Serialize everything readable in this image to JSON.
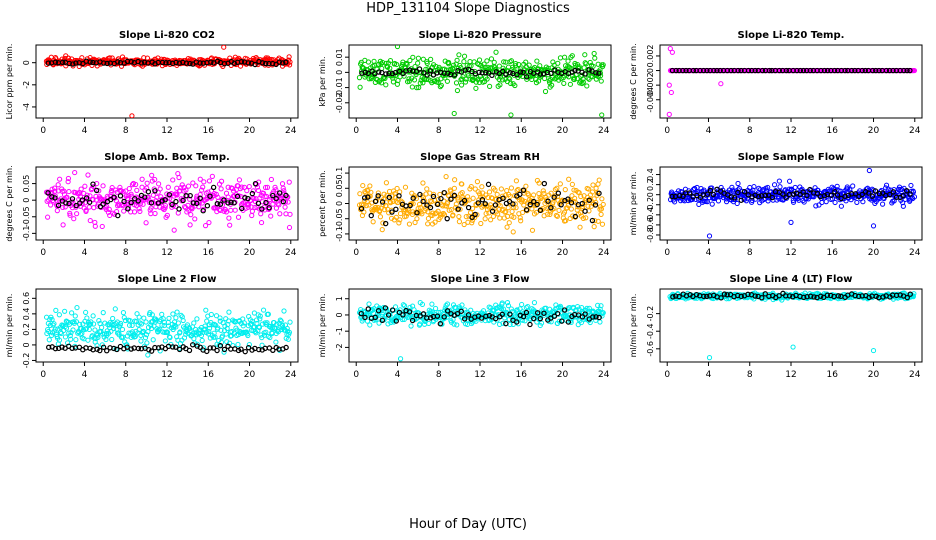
{
  "title": "HDP_131104  Slope Diagnostics",
  "xlabel": "Hour of Day (UTC)",
  "chart_data": [
    {
      "type": "scatter",
      "title": "Slope Li-820 CO2",
      "ylabel": "Licor ppm per min.",
      "color": "#ff0000",
      "ylim": [
        -5,
        1.6
      ],
      "yticks": [
        -4,
        -2,
        0
      ],
      "xlim": [
        0,
        24
      ],
      "xticks": [
        0,
        4,
        8,
        12,
        16,
        20,
        24
      ],
      "x": "0-24 h",
      "center": 0.1,
      "spread": 0.35,
      "black_center": 0,
      "black_spread": 0.15,
      "outliers": [
        {
          "x": 8.6,
          "y": -4.8
        },
        {
          "x": 17.5,
          "y": 1.4
        }
      ]
    },
    {
      "type": "scatter",
      "title": "Slope Li-820 Pressure",
      "ylabel": "kPa per min.",
      "color": "#00cc00",
      "ylim": [
        -0.03,
        0.018
      ],
      "yticks": [
        -0.02,
        -0.01,
        0,
        0.01
      ],
      "xlim": [
        0,
        24
      ],
      "xticks": [
        0,
        4,
        8,
        12,
        16,
        20,
        24
      ],
      "center": 0.0,
      "spread": 0.009,
      "black_center": 0,
      "black_spread": 0.002,
      "outliers": [
        {
          "x": 4.0,
          "y": 0.017
        },
        {
          "x": 9.5,
          "y": -0.027
        },
        {
          "x": 15.0,
          "y": -0.028
        },
        {
          "x": 23.8,
          "y": -0.028
        }
      ]
    },
    {
      "type": "scatter",
      "title": "Slope Li-820 Temp.",
      "ylabel": "degrees C per min.",
      "color": "#ff00ff",
      "ylim": [
        -0.0065,
        0.0035
      ],
      "yticks": [
        -0.004,
        -0.002,
        0,
        0.002
      ],
      "xlim": [
        0,
        24
      ],
      "xticks": [
        0,
        4,
        8,
        12,
        16,
        20,
        24
      ],
      "center": 0.0,
      "spread": 0.0,
      "black_center": 0,
      "black_spread": 0.0,
      "outliers": [
        {
          "x": 0.2,
          "y": -0.006
        },
        {
          "x": 0.3,
          "y": 0.003
        },
        {
          "x": 0.5,
          "y": 0.0025
        },
        {
          "x": 0.2,
          "y": -0.002
        },
        {
          "x": 5.2,
          "y": -0.0018
        },
        {
          "x": 0.4,
          "y": -0.003
        }
      ]
    },
    {
      "type": "scatter",
      "title": "Slope Amb. Box Temp.",
      "ylabel": "degrees C per min.",
      "color": "#ff00ff",
      "ylim": [
        -0.12,
        0.1
      ],
      "yticks": [
        -0.1,
        -0.05,
        0,
        0.05
      ],
      "xlim": [
        0,
        24
      ],
      "xticks": [
        0,
        4,
        8,
        12,
        16,
        20,
        24
      ],
      "center": 0.0,
      "spread": 0.06,
      "black_center": 0,
      "black_spread": 0.04,
      "outliers": []
    },
    {
      "type": "scatter",
      "title": "Slope Gas Stream RH",
      "ylabel": "percent per min.",
      "color": "#ffaa00",
      "ylim": [
        -0.12,
        0.12
      ],
      "yticks": [
        -0.1,
        -0.05,
        0,
        0.05,
        0.1
      ],
      "xlim": [
        0,
        24
      ],
      "xticks": [
        0,
        4,
        8,
        12,
        16,
        20,
        24
      ],
      "center": 0.0,
      "spread": 0.07,
      "black_center": 0,
      "black_spread": 0.05,
      "outliers": []
    },
    {
      "type": "scatter",
      "title": "Slope Sample Flow",
      "ylabel": "ml/min per min.",
      "color": "#0000ff",
      "ylim": [
        -0.9,
        0.55
      ],
      "yticks": [
        -0.8,
        -0.6,
        -0.4,
        -0.2,
        0,
        0.2,
        0.4
      ],
      "xlim": [
        0,
        24
      ],
      "xticks": [
        0,
        4,
        8,
        12,
        16,
        20,
        24
      ],
      "center": 0.0,
      "spread": 0.18,
      "black_center": 0,
      "black_spread": 0.1,
      "outliers": [
        {
          "x": 4.1,
          "y": -0.82
        },
        {
          "x": 12.0,
          "y": -0.55
        },
        {
          "x": 20.0,
          "y": -0.62
        },
        {
          "x": 19.6,
          "y": 0.48
        }
      ]
    },
    {
      "type": "scatter",
      "title": "Slope Line 2 Flow",
      "ylabel": "ml/min per min.",
      "color": "#00eeee",
      "ylim": [
        -0.22,
        0.72
      ],
      "yticks": [
        -0.2,
        0,
        0.2,
        0.4,
        0.6
      ],
      "xlim": [
        0,
        24
      ],
      "xticks": [
        0,
        4,
        8,
        12,
        16,
        20,
        24
      ],
      "center": 0.2,
      "spread": 0.22,
      "black_center": -0.05,
      "black_spread": 0.04,
      "outliers": []
    },
    {
      "type": "scatter",
      "title": "Slope Line 3 Flow",
      "ylabel": "ml/min per min.",
      "color": "#00eeee",
      "ylim": [
        -2.9,
        1.6
      ],
      "yticks": [
        -2,
        -1,
        0,
        1
      ],
      "xlim": [
        0,
        24
      ],
      "xticks": [
        0,
        4,
        8,
        12,
        16,
        20,
        24
      ],
      "center": 0.0,
      "spread": 0.6,
      "black_center": -0.1,
      "black_spread": 0.4,
      "outliers": [
        {
          "x": 4.3,
          "y": -2.7
        }
      ]
    },
    {
      "type": "scatter",
      "title": "Slope Line 4 (LT) Flow",
      "ylabel": "ml/min per min.",
      "color": "#00eeee",
      "ylim": [
        -0.75,
        0.08
      ],
      "yticks": [
        -0.6,
        -0.4,
        -0.2
      ],
      "xlim": [
        0,
        24
      ],
      "xticks": [
        0,
        4,
        8,
        12,
        16,
        20,
        24
      ],
      "center": 0.0,
      "spread": 0.03,
      "black_center": 0,
      "black_spread": 0.02,
      "outliers": [
        {
          "x": 4.1,
          "y": -0.7
        },
        {
          "x": 12.2,
          "y": -0.58
        },
        {
          "x": 20.0,
          "y": -0.62
        }
      ]
    }
  ]
}
